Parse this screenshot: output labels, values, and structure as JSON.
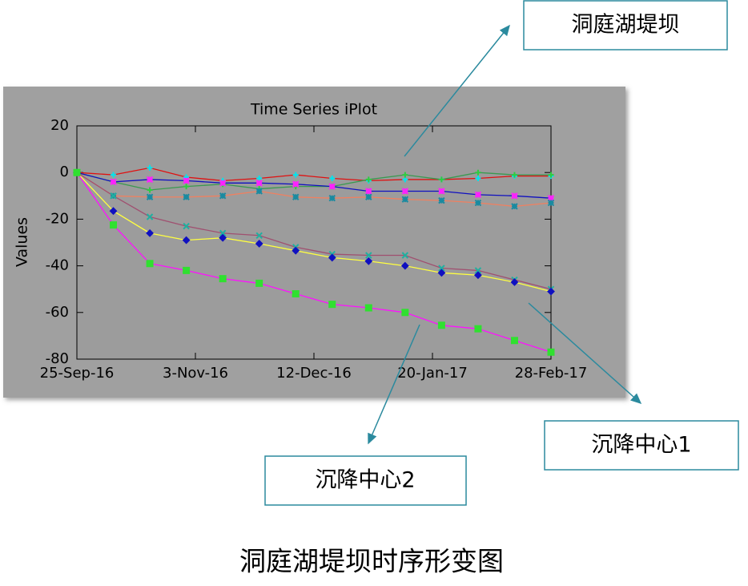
{
  "chart_data": {
    "type": "line",
    "title": "Time Series iPlot",
    "y_label": "Values",
    "caption": "洞庭湖堤坝时序形变图",
    "annotations": [
      "洞庭湖堤坝",
      "沉降中心1",
      "沉降中心2"
    ],
    "x": [
      "2016-09-25",
      "2016-10-07",
      "2016-10-19",
      "2016-10-31",
      "2016-11-12",
      "2016-11-24",
      "2016-12-06",
      "2016-12-18",
      "2016-12-30",
      "2017-01-11",
      "2017-01-23",
      "2017-02-04",
      "2017-02-16",
      "2017-02-28"
    ],
    "xlim": [
      "2016-09-25",
      "2017-02-28"
    ],
    "xticks": [
      {
        "value": "2016-09-25",
        "label": "25-Sep-16"
      },
      {
        "value": "2016-11-03",
        "label": "3-Nov-16"
      },
      {
        "value": "2016-12-12",
        "label": "12-Dec-16"
      },
      {
        "value": "2017-01-20",
        "label": "20-Jan-17"
      },
      {
        "value": "2017-02-28",
        "label": "28-Feb-17"
      }
    ],
    "ylim": [
      -80,
      20
    ],
    "yticks": [
      -80,
      -60,
      -40,
      -20,
      0,
      20
    ],
    "series": [
      {
        "color": "#e01010",
        "marker": "plus",
        "marker_color": "#00e5ee",
        "values": [
          0,
          -1,
          2,
          -2,
          -3.5,
          -2.5,
          -1,
          -2.5,
          -3.5,
          -3,
          -3,
          -2.5,
          -1.5,
          -1.5
        ]
      },
      {
        "color": "#3a9a50",
        "marker": "plus",
        "marker_color": "#2ecc40",
        "values": [
          0,
          -4,
          -7.5,
          -6,
          -5,
          -7,
          -6,
          -6,
          -3,
          -1,
          -3,
          0,
          -1,
          -1
        ]
      },
      {
        "color": "#1010c0",
        "marker": "star",
        "marker_color": "#ff20ff",
        "values": [
          0,
          -4,
          -3,
          -3.5,
          -4.5,
          -4.5,
          -5,
          -6,
          -8,
          -8,
          -8,
          -9.5,
          -10,
          -11
        ]
      },
      {
        "color": "#f08060",
        "marker": "star",
        "marker_color": "#1a8aa0",
        "values": [
          0,
          -10,
          -10.5,
          -10.5,
          -10,
          -8,
          -10.5,
          -11,
          -10.5,
          -11.5,
          -12,
          -13,
          -14.5,
          -13
        ]
      },
      {
        "color": "#a05070",
        "marker": "x",
        "marker_color": "#20b0a0",
        "values": [
          0,
          -10,
          -19,
          -23,
          -26,
          -27,
          -32,
          -35,
          -35.5,
          -35.5,
          -41,
          -42,
          -46,
          -50
        ]
      },
      {
        "color": "#ffff40",
        "marker": "diamond",
        "marker_color": "#1010c0",
        "values": [
          0,
          -16.5,
          -26,
          -29,
          -28,
          -30.5,
          -33.5,
          -36.5,
          -38,
          -40,
          -43,
          -44,
          -47,
          -51
        ]
      },
      {
        "color": "#ff10ff",
        "marker": "square",
        "marker_color": "#30e030",
        "values": [
          0,
          -22.5,
          -39,
          -42,
          -45.5,
          -47.5,
          -52,
          -56.5,
          -58,
          -60,
          -65.5,
          -67,
          -72,
          -77
        ]
      }
    ]
  }
}
